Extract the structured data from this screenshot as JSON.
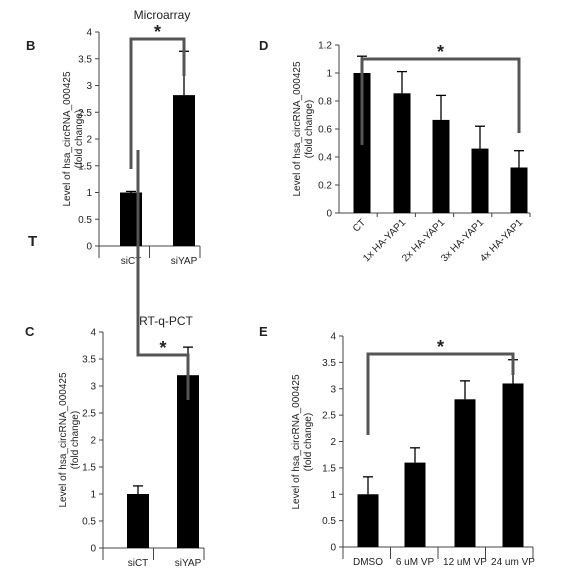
{
  "figure": {
    "stray_mark": "T",
    "colors": {
      "bar": "#000000",
      "axis": "#444444",
      "bracket": "#555555",
      "background": "#ffffff"
    }
  },
  "chart_data": [
    {
      "panel": "B",
      "type": "bar",
      "title": "Microarray",
      "ylabel": "Level of hsa_circRNA_000425",
      "ylabel2": "(fold change)",
      "categories": [
        "siCT",
        "siYAP"
      ],
      "values": [
        1.0,
        2.82
      ],
      "errors": [
        0.02,
        0.82
      ],
      "ylim": [
        0,
        4
      ],
      "yticks": [
        "0",
        "0.5",
        "1",
        "1.5",
        "2",
        "2.5",
        "3",
        "3.5",
        "4"
      ],
      "grid": false,
      "significance": {
        "from": 0,
        "to": 1,
        "label": "*"
      }
    },
    {
      "panel": "C",
      "type": "bar",
      "title": "RT-q-PCT",
      "ylabel": "Level of hsa_circRNA_000425",
      "ylabel2": "(fold change)",
      "categories": [
        "siCT",
        "siYAP"
      ],
      "values": [
        1.0,
        3.2
      ],
      "errors": [
        0.15,
        0.52
      ],
      "ylim": [
        0,
        4
      ],
      "yticks": [
        "0",
        "0.5",
        "1",
        "1.5",
        "2",
        "2.5",
        "3",
        "3.5",
        "4"
      ],
      "grid": false,
      "significance": {
        "from": 0,
        "to": 1,
        "label": "*"
      }
    },
    {
      "panel": "D",
      "type": "bar",
      "title": "",
      "ylabel": "Level of hsa_circRNA_000425",
      "ylabel2": "(fold change)",
      "categories": [
        "CT",
        "1x HA-YAP1",
        "2x HA-YAP1",
        "3x HA-YAP1",
        "4x HA-YAP1"
      ],
      "values": [
        1.0,
        0.855,
        0.665,
        0.46,
        0.325
      ],
      "errors": [
        0.12,
        0.155,
        0.175,
        0.16,
        0.12
      ],
      "ylim": [
        0,
        1.2
      ],
      "yticks": [
        "0",
        "0.2",
        "0.4",
        "0.6",
        "0.8",
        "1",
        "1.2"
      ],
      "grid": false,
      "significance": {
        "from": 0,
        "to": 4,
        "label": "*"
      }
    },
    {
      "panel": "E",
      "type": "bar",
      "title": "",
      "ylabel": "Level of hsa_circRNA_000425",
      "ylabel2": "(fold change)",
      "categories": [
        "DMSO",
        "6 uM VP",
        "12 uM VP",
        "24 um VP"
      ],
      "values": [
        1.0,
        1.6,
        2.8,
        3.1
      ],
      "errors": [
        0.33,
        0.28,
        0.35,
        0.45
      ],
      "ylim": [
        0,
        4
      ],
      "yticks": [
        "0",
        "0.5",
        "1",
        "1.5",
        "2",
        "2.5",
        "3",
        "3.5",
        "4"
      ],
      "grid": false,
      "significance": {
        "from": 0,
        "to": 3,
        "label": "*"
      }
    }
  ]
}
